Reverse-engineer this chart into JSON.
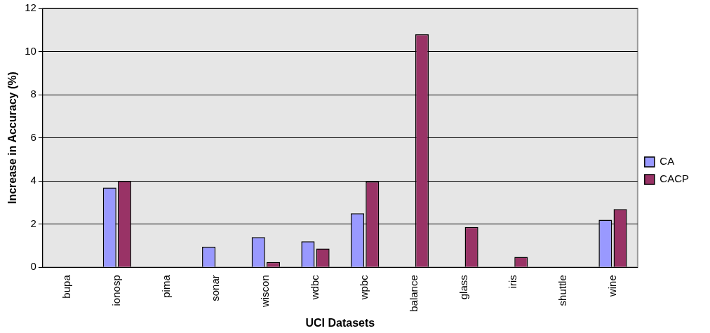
{
  "chart_data": {
    "type": "bar",
    "xlabel": "UCI Datasets",
    "ylabel": "Increase in Accuracy (%)",
    "categories": [
      "bupa",
      "ionosp",
      "pima",
      "sonar",
      "wiscon",
      "wdbc",
      "wpbc",
      "balance",
      "glass",
      "iris",
      "shuttle",
      "wine"
    ],
    "series": [
      {
        "name": "CA",
        "color": "#9999ff",
        "values": [
          0,
          3.7,
          0,
          0.95,
          1.4,
          1.2,
          2.5,
          0,
          0,
          0,
          0,
          2.2
        ]
      },
      {
        "name": "CACP",
        "color": "#993366",
        "values": [
          0,
          4.0,
          0,
          0,
          0.24,
          0.87,
          3.97,
          10.8,
          1.87,
          0.48,
          0,
          2.7
        ]
      }
    ],
    "ylim": [
      0,
      12
    ],
    "yticks": [
      0,
      2,
      4,
      6,
      8,
      10,
      12
    ],
    "grid": "y",
    "legend": "right"
  }
}
